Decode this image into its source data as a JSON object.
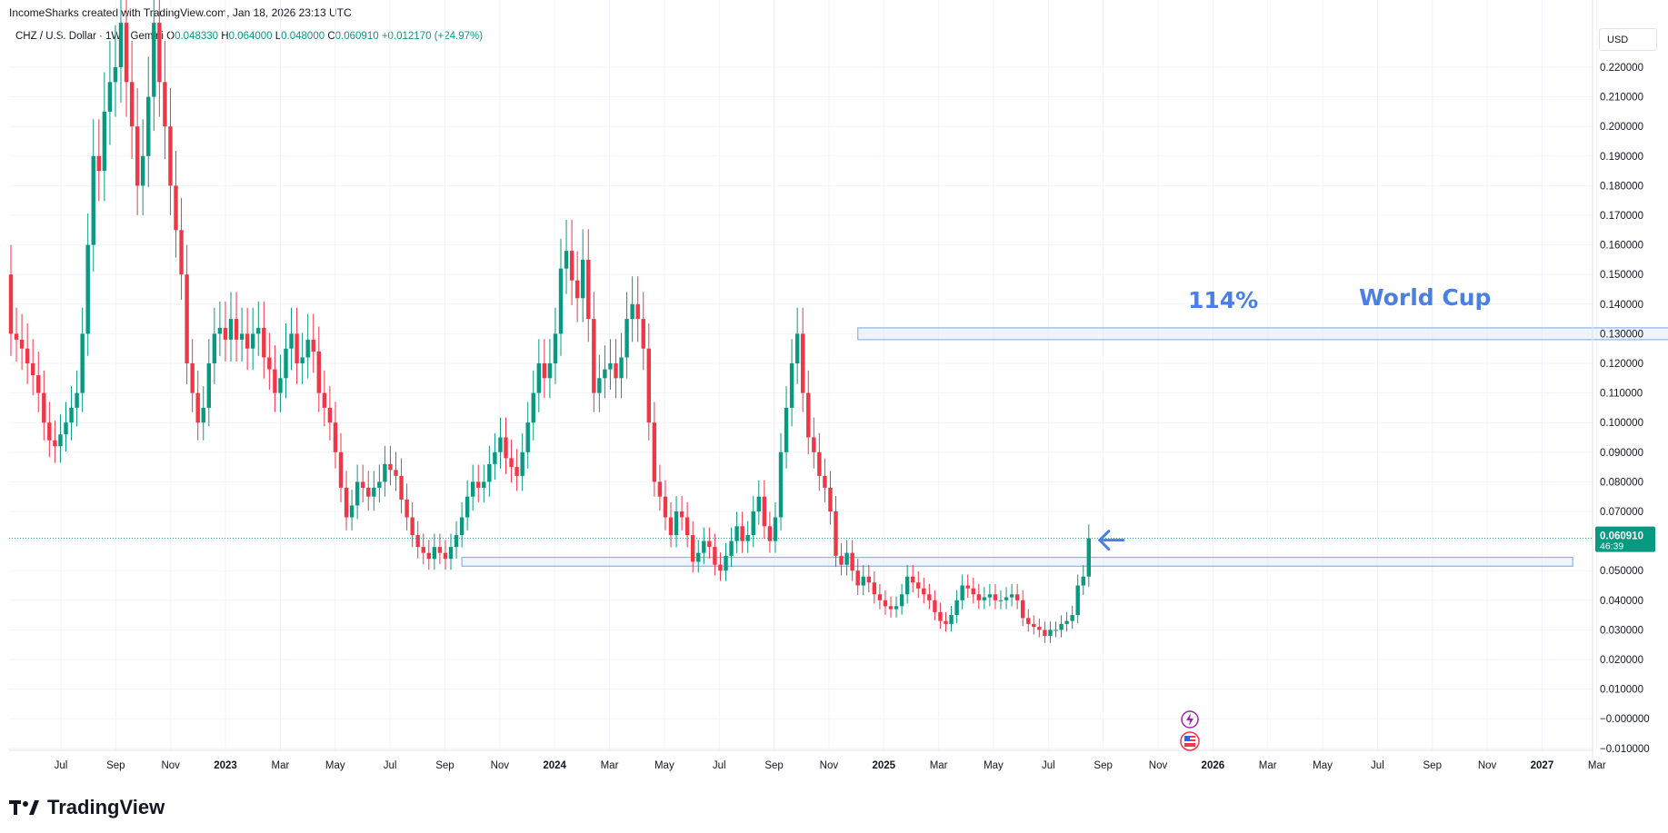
{
  "header": {
    "credit": "IncomeSharks created with TradingView.com, Jan 18, 2026 23:13 UTC"
  },
  "legend": {
    "symbol": "CHZ / U.S. Dollar · 1W · Gemini",
    "open_label": "O",
    "open": "0.048330",
    "high_label": "H",
    "high": "0.064000",
    "low_label": "L",
    "low": "0.048000",
    "close_label": "C",
    "close": "0.060910",
    "change": "+0.012170 (+24.97%)"
  },
  "currency": "USD",
  "brand": "TradingView",
  "colors": {
    "up": "#089981",
    "down": "#f23645",
    "annotation": "#4a7fe6",
    "zone_fill": "#dbe6fb",
    "zone_border": "#90b2f0"
  },
  "chart_data": {
    "type": "candlestick",
    "timeframe": "1W",
    "ylim": [
      -0.01,
      0.225
    ],
    "y_ticks": [
      "0.220000",
      "0.210000",
      "0.200000",
      "0.190000",
      "0.180000",
      "0.170000",
      "0.160000",
      "0.150000",
      "0.140000",
      "0.130000",
      "0.120000",
      "0.110000",
      "0.100000",
      "0.090000",
      "0.080000",
      "0.070000",
      "0.060000",
      "0.050000",
      "0.040000",
      "0.030000",
      "0.020000",
      "0.010000",
      "−0.000000",
      "−0.010000"
    ],
    "x_ticks": [
      {
        "label": "Jul",
        "bold": false
      },
      {
        "label": "Sep",
        "bold": false
      },
      {
        "label": "Nov",
        "bold": false
      },
      {
        "label": "2023",
        "bold": true
      },
      {
        "label": "Mar",
        "bold": false
      },
      {
        "label": "May",
        "bold": false
      },
      {
        "label": "Jul",
        "bold": false
      },
      {
        "label": "Sep",
        "bold": false
      },
      {
        "label": "Nov",
        "bold": false
      },
      {
        "label": "2024",
        "bold": true
      },
      {
        "label": "Mar",
        "bold": false
      },
      {
        "label": "May",
        "bold": false
      },
      {
        "label": "Jul",
        "bold": false
      },
      {
        "label": "Sep",
        "bold": false
      },
      {
        "label": "Nov",
        "bold": false
      },
      {
        "label": "2025",
        "bold": true
      },
      {
        "label": "Mar",
        "bold": false
      },
      {
        "label": "May",
        "bold": false
      },
      {
        "label": "Jul",
        "bold": false
      },
      {
        "label": "Sep",
        "bold": false
      },
      {
        "label": "Nov",
        "bold": false
      },
      {
        "label": "2026",
        "bold": true
      },
      {
        "label": "Mar",
        "bold": false
      },
      {
        "label": "May",
        "bold": false
      },
      {
        "label": "Jul",
        "bold": false
      },
      {
        "label": "Sep",
        "bold": false
      },
      {
        "label": "Nov",
        "bold": false
      },
      {
        "label": "2027",
        "bold": true
      },
      {
        "label": "Mar",
        "bold": false
      }
    ],
    "closes": [
      0.13,
      0.128,
      0.125,
      0.12,
      0.116,
      0.11,
      0.1,
      0.094,
      0.092,
      0.096,
      0.1,
      0.105,
      0.11,
      0.13,
      0.16,
      0.19,
      0.185,
      0.205,
      0.215,
      0.22,
      0.235,
      0.215,
      0.2,
      0.18,
      0.19,
      0.21,
      0.235,
      0.215,
      0.2,
      0.18,
      0.165,
      0.15,
      0.12,
      0.11,
      0.1,
      0.105,
      0.12,
      0.13,
      0.132,
      0.128,
      0.135,
      0.128,
      0.13,
      0.125,
      0.13,
      0.132,
      0.122,
      0.118,
      0.11,
      0.115,
      0.125,
      0.13,
      0.12,
      0.122,
      0.128,
      0.124,
      0.11,
      0.105,
      0.1,
      0.09,
      0.078,
      0.068,
      0.072,
      0.08,
      0.078,
      0.075,
      0.078,
      0.08,
      0.086,
      0.084,
      0.082,
      0.074,
      0.068,
      0.062,
      0.058,
      0.056,
      0.054,
      0.058,
      0.056,
      0.054,
      0.058,
      0.062,
      0.068,
      0.075,
      0.08,
      0.078,
      0.08,
      0.086,
      0.09,
      0.095,
      0.088,
      0.085,
      0.082,
      0.09,
      0.1,
      0.11,
      0.12,
      0.115,
      0.12,
      0.13,
      0.152,
      0.158,
      0.148,
      0.142,
      0.155,
      0.135,
      0.11,
      0.115,
      0.118,
      0.12,
      0.115,
      0.122,
      0.135,
      0.14,
      0.135,
      0.125,
      0.1,
      0.08,
      0.075,
      0.068,
      0.062,
      0.07,
      0.068,
      0.062,
      0.053,
      0.056,
      0.06,
      0.058,
      0.052,
      0.05,
      0.055,
      0.06,
      0.065,
      0.06,
      0.062,
      0.07,
      0.075,
      0.065,
      0.06,
      0.068,
      0.09,
      0.105,
      0.12,
      0.13,
      0.11,
      0.095,
      0.09,
      0.082,
      0.078,
      0.07,
      0.055,
      0.052,
      0.056,
      0.05,
      0.045,
      0.048,
      0.046,
      0.042,
      0.04,
      0.038,
      0.037,
      0.038,
      0.042,
      0.048,
      0.046,
      0.044,
      0.042,
      0.04,
      0.036,
      0.033,
      0.032,
      0.035,
      0.04,
      0.045,
      0.044,
      0.042,
      0.04,
      0.041,
      0.042,
      0.04,
      0.04,
      0.041,
      0.042,
      0.04,
      0.034,
      0.032,
      0.031,
      0.03,
      0.028,
      0.03,
      0.03,
      0.032,
      0.033,
      0.035,
      0.045,
      0.048,
      0.06091
    ],
    "price_line": 0.06091,
    "last_price_label": "0.060910",
    "countdown": "46:39",
    "zones": [
      {
        "from_bar": 154,
        "to_bar": 320,
        "low": 0.128,
        "high": 0.132
      },
      {
        "from_bar": 82,
        "to_bar": 284,
        "low": 0.0515,
        "high": 0.0545
      }
    ],
    "annotations": [
      "114%",
      "World Cup"
    ]
  }
}
